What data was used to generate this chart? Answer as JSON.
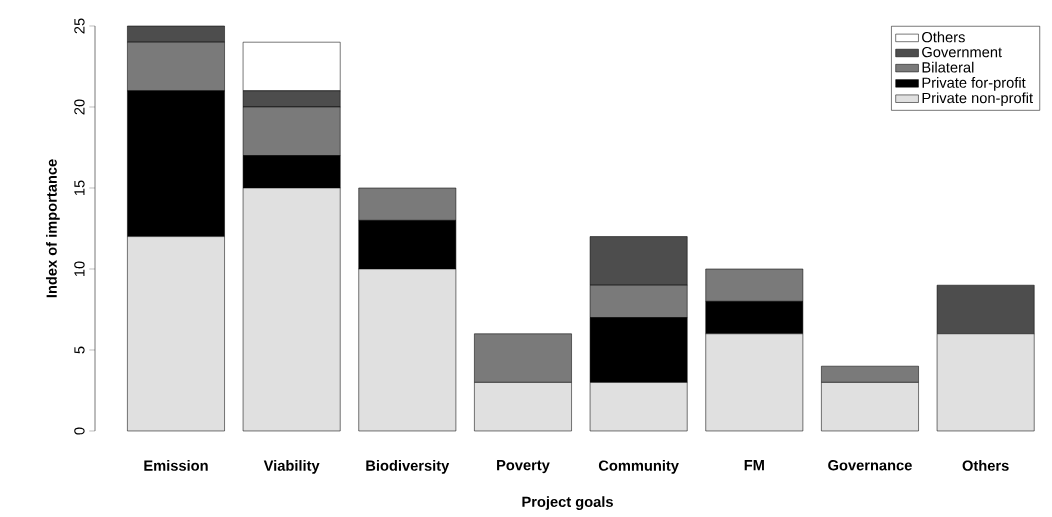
{
  "chart_data": {
    "type": "bar",
    "stacked": true,
    "xlabel": "Project goals",
    "ylabel": "Index of importance",
    "categories": [
      "Emission",
      "Viability",
      "Biodiversity",
      "Poverty",
      "Community",
      "FM",
      "Governance",
      "Others"
    ],
    "ylim": [
      0,
      25
    ],
    "yticks": [
      0,
      5,
      10,
      15,
      20,
      25
    ],
    "legend": "top right",
    "series": [
      {
        "name": "Private non-profit",
        "color": "#e0e0e0",
        "values": [
          12,
          15,
          10,
          3,
          3,
          6,
          3,
          6
        ]
      },
      {
        "name": "Private for-profit",
        "color": "#000000",
        "values": [
          9,
          2,
          3,
          0,
          4,
          2,
          0,
          0
        ]
      },
      {
        "name": "Bilateral",
        "color": "#7a7a7a",
        "values": [
          3,
          3,
          2,
          3,
          2,
          2,
          1,
          0
        ]
      },
      {
        "name": "Government",
        "color": "#4d4d4d",
        "values": [
          1,
          1,
          0,
          0,
          3,
          0,
          0,
          3
        ]
      },
      {
        "name": "Others",
        "color": "#ffffff",
        "values": [
          0,
          3,
          0,
          0,
          0,
          0,
          0,
          0
        ]
      }
    ]
  }
}
